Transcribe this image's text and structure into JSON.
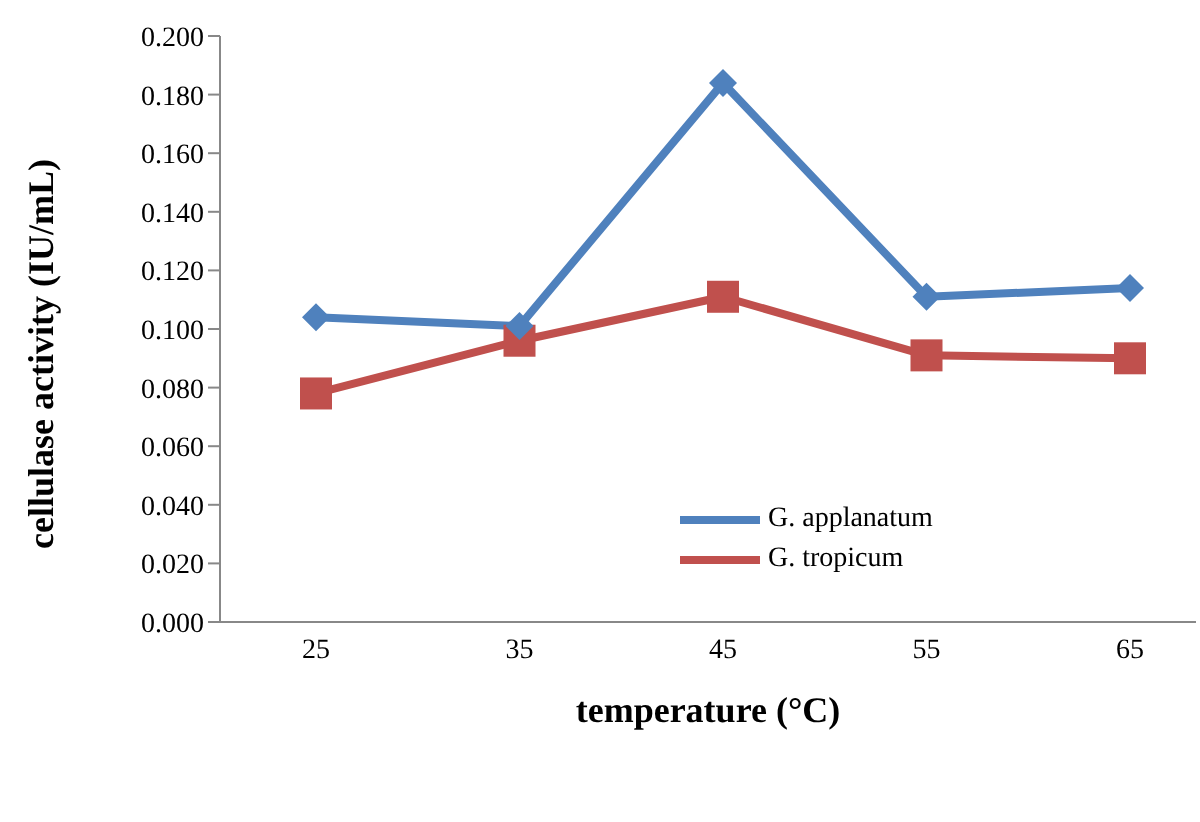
{
  "chart_data": {
    "type": "line",
    "xlabel": "temperature (°C)",
    "ylabel": "cellulase activity (IU/mL)",
    "categories": [
      "25",
      "35",
      "45",
      "55",
      "65"
    ],
    "series": [
      {
        "name": "G. applanatum",
        "color": "#4f81bd",
        "marker": "diamond",
        "values": [
          0.104,
          0.101,
          0.184,
          0.111,
          0.114
        ]
      },
      {
        "name": "G. tropicum",
        "color": "#c0504d",
        "marker": "square",
        "values": [
          0.078,
          0.096,
          0.111,
          0.091,
          0.09
        ]
      }
    ],
    "ylim": [
      0,
      0.2
    ],
    "yticks": [
      {
        "value": 0,
        "label": "0.000"
      },
      {
        "value": 0.02,
        "label": "0.020"
      },
      {
        "value": 0.04,
        "label": "0.040"
      },
      {
        "value": 0.06,
        "label": "0.060"
      },
      {
        "value": 0.08,
        "label": "0.080"
      },
      {
        "value": 0.1,
        "label": "0.100"
      },
      {
        "value": 0.12,
        "label": "0.120"
      },
      {
        "value": 0.14,
        "label": "0.140"
      },
      {
        "value": 0.16,
        "label": "0.160"
      },
      {
        "value": 0.18,
        "label": "0.180"
      },
      {
        "value": 0.2,
        "label": "0.200"
      }
    ],
    "grid": false,
    "legend": "bottom right",
    "line_style": "solid"
  }
}
